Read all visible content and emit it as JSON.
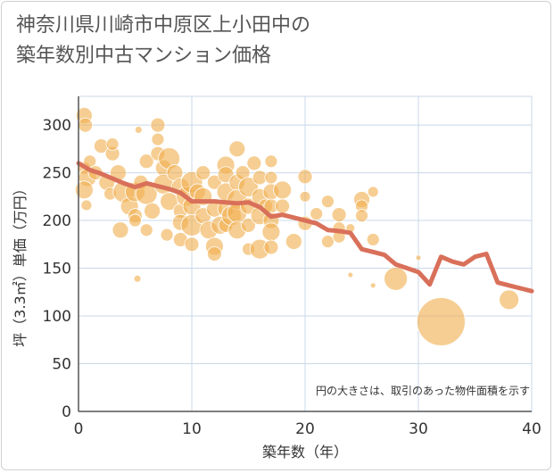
{
  "title_line1": "神奈川県川崎市中原区上小田中の",
  "title_line2": "築年数別中古マンション価格",
  "chart_data": {
    "type": "scatter",
    "title": "神奈川県川崎市中原区上小田中の築年数別中古マンション価格",
    "xlabel": "築年数（年）",
    "ylabel": "坪（3.3㎡）単価（万円）",
    "xlim": [
      0,
      40
    ],
    "ylim": [
      0,
      330
    ],
    "xticks": [
      0,
      10,
      20,
      30,
      40
    ],
    "yticks": [
      0,
      50,
      100,
      150,
      200,
      250,
      300
    ],
    "grid": true,
    "note": "円の大きさは、取引のあった物件面積を示す",
    "colors": {
      "bubble": "#f0b050",
      "line": "#d9705a",
      "grid": "#c8d8e8"
    },
    "points": [
      {
        "x": 0.5,
        "y": 310,
        "s": 9
      },
      {
        "x": 0.6,
        "y": 300,
        "s": 8
      },
      {
        "x": 0.5,
        "y": 255,
        "s": 7
      },
      {
        "x": 0.8,
        "y": 245,
        "s": 10
      },
      {
        "x": 0.5,
        "y": 232,
        "s": 10
      },
      {
        "x": 0.7,
        "y": 216,
        "s": 6
      },
      {
        "x": 1,
        "y": 262,
        "s": 7
      },
      {
        "x": 1.5,
        "y": 250,
        "s": 8
      },
      {
        "x": 2,
        "y": 278,
        "s": 8
      },
      {
        "x": 2.5,
        "y": 240,
        "s": 9
      },
      {
        "x": 2.8,
        "y": 228,
        "s": 7
      },
      {
        "x": 3,
        "y": 270,
        "s": 8
      },
      {
        "x": 3,
        "y": 280,
        "s": 7
      },
      {
        "x": 3.5,
        "y": 250,
        "s": 9
      },
      {
        "x": 4,
        "y": 230,
        "s": 12
      },
      {
        "x": 3.7,
        "y": 190,
        "s": 9
      },
      {
        "x": 4.5,
        "y": 215,
        "s": 10
      },
      {
        "x": 5,
        "y": 230,
        "s": 11
      },
      {
        "x": 5,
        "y": 205,
        "s": 8
      },
      {
        "x": 5,
        "y": 200,
        "s": 7
      },
      {
        "x": 5.3,
        "y": 295,
        "s": 4
      },
      {
        "x": 5.2,
        "y": 139,
        "s": 4
      },
      {
        "x": 5.5,
        "y": 240,
        "s": 8
      },
      {
        "x": 6,
        "y": 228,
        "s": 12
      },
      {
        "x": 6,
        "y": 190,
        "s": 7
      },
      {
        "x": 6,
        "y": 262,
        "s": 8
      },
      {
        "x": 6.5,
        "y": 210,
        "s": 9
      },
      {
        "x": 7,
        "y": 300,
        "s": 8
      },
      {
        "x": 7,
        "y": 285,
        "s": 7
      },
      {
        "x": 7,
        "y": 270,
        "s": 8
      },
      {
        "x": 7.5,
        "y": 255,
        "s": 9
      },
      {
        "x": 7.5,
        "y": 238,
        "s": 11
      },
      {
        "x": 8,
        "y": 265,
        "s": 12
      },
      {
        "x": 8,
        "y": 220,
        "s": 10
      },
      {
        "x": 7.8,
        "y": 185,
        "s": 7
      },
      {
        "x": 8.5,
        "y": 250,
        "s": 9
      },
      {
        "x": 9,
        "y": 235,
        "s": 10
      },
      {
        "x": 9,
        "y": 210,
        "s": 8
      },
      {
        "x": 9,
        "y": 198,
        "s": 9
      },
      {
        "x": 9,
        "y": 180,
        "s": 8
      },
      {
        "x": 9.5,
        "y": 225,
        "s": 11
      },
      {
        "x": 10,
        "y": 240,
        "s": 12
      },
      {
        "x": 10,
        "y": 215,
        "s": 10
      },
      {
        "x": 10,
        "y": 195,
        "s": 12
      },
      {
        "x": 10,
        "y": 175,
        "s": 8
      },
      {
        "x": 10.5,
        "y": 230,
        "s": 9
      },
      {
        "x": 11,
        "y": 250,
        "s": 8
      },
      {
        "x": 11,
        "y": 225,
        "s": 10
      },
      {
        "x": 11,
        "y": 205,
        "s": 9
      },
      {
        "x": 11.5,
        "y": 190,
        "s": 10
      },
      {
        "x": 12,
        "y": 240,
        "s": 8
      },
      {
        "x": 12,
        "y": 212,
        "s": 9
      },
      {
        "x": 12,
        "y": 173,
        "s": 10
      },
      {
        "x": 12,
        "y": 165,
        "s": 8
      },
      {
        "x": 12.5,
        "y": 195,
        "s": 10
      },
      {
        "x": 13,
        "y": 258,
        "s": 10
      },
      {
        "x": 13,
        "y": 248,
        "s": 9
      },
      {
        "x": 13,
        "y": 230,
        "s": 10
      },
      {
        "x": 13,
        "y": 212,
        "s": 9
      },
      {
        "x": 13,
        "y": 195,
        "s": 8
      },
      {
        "x": 13.5,
        "y": 205,
        "s": 11
      },
      {
        "x": 14,
        "y": 275,
        "s": 9
      },
      {
        "x": 14,
        "y": 240,
        "s": 9
      },
      {
        "x": 14,
        "y": 222,
        "s": 11
      },
      {
        "x": 14,
        "y": 208,
        "s": 11
      },
      {
        "x": 14,
        "y": 190,
        "s": 10
      },
      {
        "x": 14.5,
        "y": 250,
        "s": 8
      },
      {
        "x": 15,
        "y": 235,
        "s": 11
      },
      {
        "x": 15,
        "y": 215,
        "s": 9
      },
      {
        "x": 15,
        "y": 195,
        "s": 8
      },
      {
        "x": 15,
        "y": 170,
        "s": 7
      },
      {
        "x": 15.5,
        "y": 260,
        "s": 8
      },
      {
        "x": 16,
        "y": 245,
        "s": 8
      },
      {
        "x": 16,
        "y": 225,
        "s": 9
      },
      {
        "x": 16,
        "y": 205,
        "s": 10
      },
      {
        "x": 16,
        "y": 170,
        "s": 11
      },
      {
        "x": 16.5,
        "y": 215,
        "s": 8
      },
      {
        "x": 17,
        "y": 262,
        "s": 7
      },
      {
        "x": 17,
        "y": 245,
        "s": 7
      },
      {
        "x": 17,
        "y": 230,
        "s": 9
      },
      {
        "x": 17,
        "y": 215,
        "s": 8
      },
      {
        "x": 17,
        "y": 200,
        "s": 9
      },
      {
        "x": 17,
        "y": 188,
        "s": 10
      },
      {
        "x": 17,
        "y": 172,
        "s": 8
      },
      {
        "x": 18,
        "y": 232,
        "s": 10
      },
      {
        "x": 18,
        "y": 215,
        "s": 8
      },
      {
        "x": 19,
        "y": 178,
        "s": 9
      },
      {
        "x": 20,
        "y": 246,
        "s": 8
      },
      {
        "x": 20,
        "y": 225,
        "s": 6
      },
      {
        "x": 20,
        "y": 197,
        "s": 8
      },
      {
        "x": 21,
        "y": 207,
        "s": 7
      },
      {
        "x": 22,
        "y": 220,
        "s": 7
      },
      {
        "x": 22,
        "y": 178,
        "s": 7
      },
      {
        "x": 23,
        "y": 206,
        "s": 8
      },
      {
        "x": 23,
        "y": 192,
        "s": 7
      },
      {
        "x": 23,
        "y": 183,
        "s": 7
      },
      {
        "x": 24,
        "y": 192,
        "s": 5
      },
      {
        "x": 24,
        "y": 143,
        "s": 3
      },
      {
        "x": 25,
        "y": 222,
        "s": 9
      },
      {
        "x": 25,
        "y": 215,
        "s": 7
      },
      {
        "x": 25,
        "y": 205,
        "s": 7
      },
      {
        "x": 26,
        "y": 230,
        "s": 6
      },
      {
        "x": 26,
        "y": 180,
        "s": 7
      },
      {
        "x": 26,
        "y": 132,
        "s": 3
      },
      {
        "x": 28,
        "y": 139,
        "s": 13
      },
      {
        "x": 30,
        "y": 161,
        "s": 3
      },
      {
        "x": 32,
        "y": 94,
        "s": 27
      },
      {
        "x": 38,
        "y": 117,
        "s": 11
      }
    ],
    "line": {
      "x": [
        0,
        1,
        2,
        3,
        4,
        5,
        6,
        7,
        8,
        9,
        10,
        11,
        12,
        13,
        14,
        15,
        16,
        17,
        18,
        19,
        20,
        21,
        22,
        23,
        24,
        25,
        26,
        27,
        28,
        29,
        30,
        31,
        32,
        33,
        34,
        35,
        36,
        37,
        38,
        39,
        40
      ],
      "y": [
        260,
        253,
        249,
        244,
        239,
        235,
        239,
        236,
        233,
        229,
        220,
        220,
        220,
        219,
        218,
        219,
        214,
        204,
        206,
        203,
        200,
        197,
        190,
        189,
        187,
        170,
        167,
        164,
        154,
        150,
        146,
        133,
        162,
        157,
        154,
        162,
        165,
        135,
        132,
        129,
        126
      ]
    }
  }
}
